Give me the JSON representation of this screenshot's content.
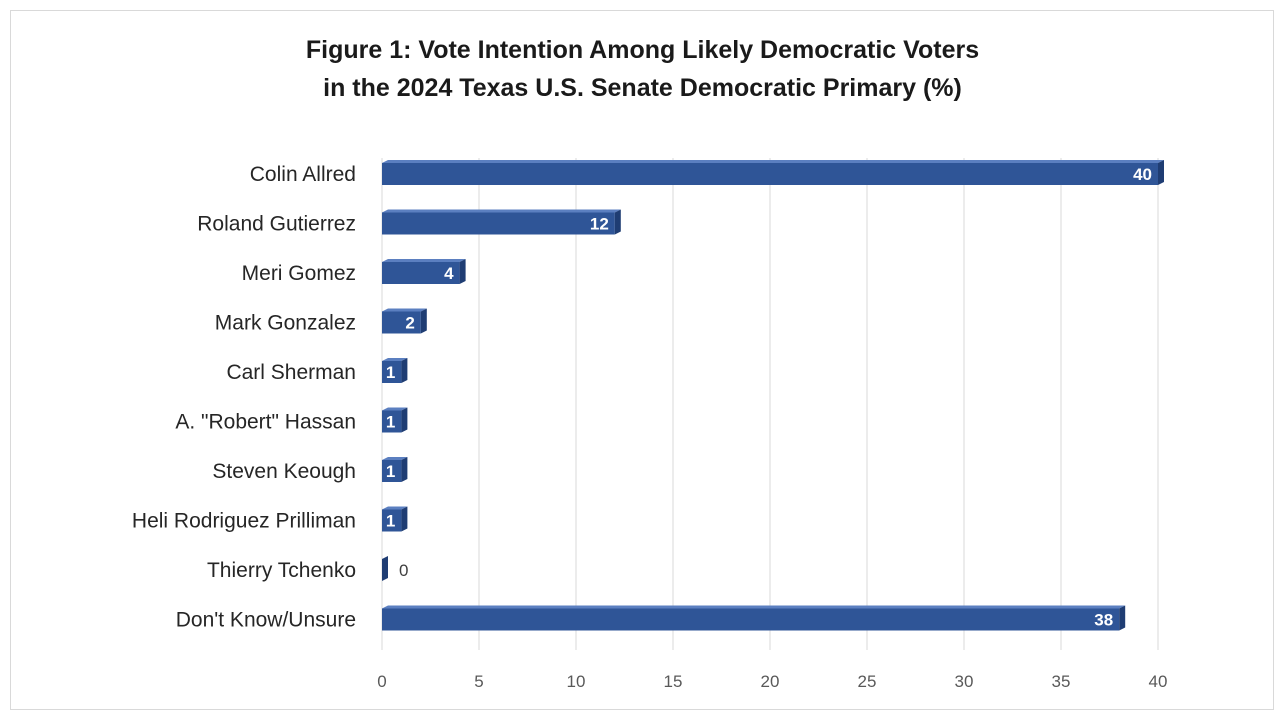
{
  "chart_data": {
    "type": "bar",
    "orientation": "horizontal",
    "title_line1": "Figure 1: Vote Intention Among Likely Democratic Voters",
    "title_line2": "in the 2024 Texas U.S. Senate Democratic Primary (%)",
    "categories": [
      "Colin Allred",
      "Roland Gutierrez",
      "Meri Gomez",
      "Mark Gonzalez",
      "Carl Sherman",
      "A. \"Robert\" Hassan",
      "Steven Keough",
      "Heli Rodriguez Prilliman",
      "Thierry Tchenko",
      "Don't Know/Unsure"
    ],
    "values": [
      40,
      12,
      4,
      2,
      1,
      1,
      1,
      1,
      0,
      38
    ],
    "xlim": [
      0,
      40
    ],
    "x_ticks": [
      0,
      5,
      10,
      15,
      20,
      25,
      30,
      35,
      40
    ],
    "grid": "vertical",
    "legend": "none",
    "bar_color": "#2f5597",
    "bar_top_color": "#5b7fc0",
    "bar_side_color": "#1f3d73",
    "data_labels": true
  }
}
